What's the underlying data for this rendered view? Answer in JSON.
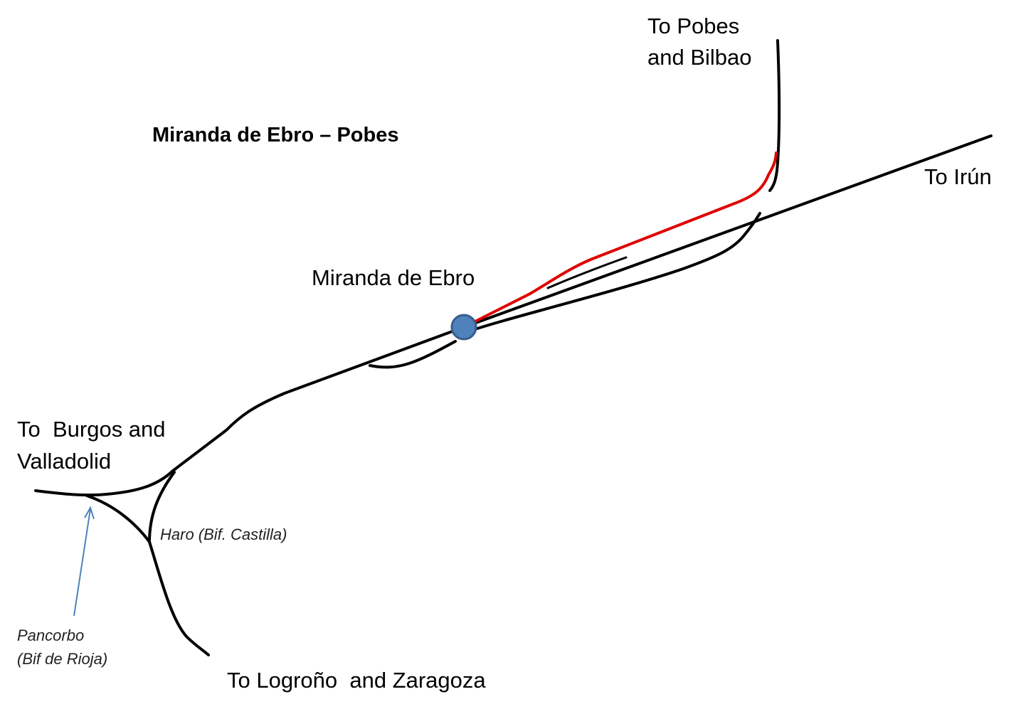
{
  "title": "Miranda de Ebro – Pobes",
  "station": {
    "name": "Miranda de Ebro",
    "marker_color": "#4F81BD",
    "marker_border": "#385D8A"
  },
  "destinations": {
    "pobes_bilbao": [
      "To Pobes",
      "and Bilbao"
    ],
    "irun": "To Irún",
    "burgos_valladolid": [
      "To  Burgos and",
      "Valladolid"
    ],
    "logrono_zaragoza": "To Logroño  and Zaragoza"
  },
  "junctions": {
    "haro": "Haro (Bif. Castilla)",
    "pancorbo": [
      "Pancorbo",
      "(Bif de Rioja)"
    ]
  },
  "colors": {
    "track": "#000000",
    "highlight_route": "#E00000",
    "pointer_arrow": "#4F81BD"
  }
}
